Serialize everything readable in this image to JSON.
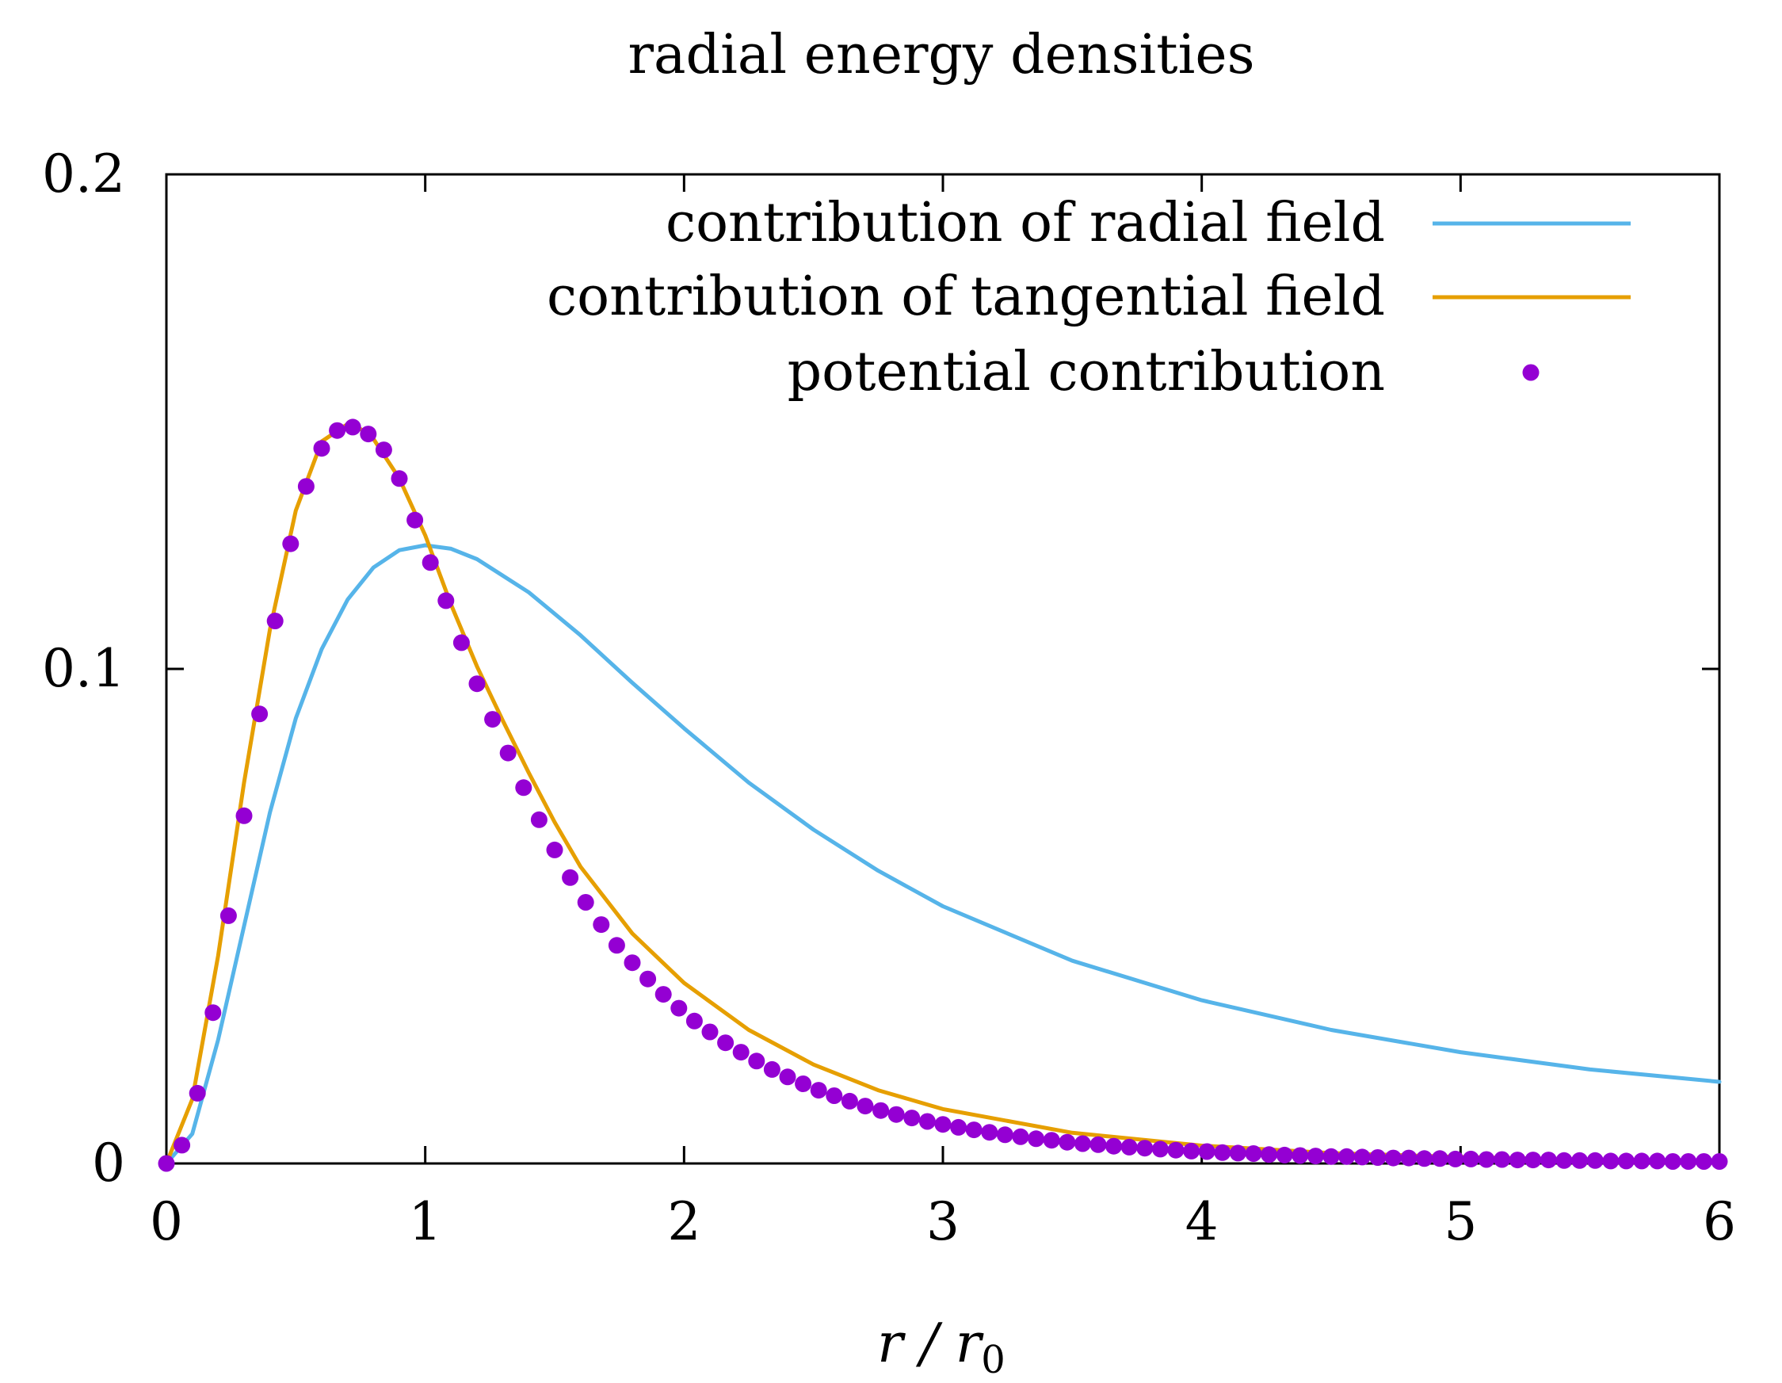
{
  "chart_data": {
    "type": "line",
    "title": "radial energy densities",
    "xlabel": {
      "main": "r / r",
      "subscript": "0"
    },
    "ylabel": "",
    "xlim": [
      0,
      6
    ],
    "ylim": [
      0,
      0.2
    ],
    "xticks": [
      0,
      1,
      2,
      3,
      4,
      5,
      6
    ],
    "yticks": [
      0,
      0.1,
      0.2
    ],
    "xtick_labels": [
      "0",
      "1",
      "2",
      "3",
      "4",
      "5",
      "6"
    ],
    "ytick_labels": [
      "0",
      "0.1",
      "0.2"
    ],
    "legend_position": "top-right",
    "series": [
      {
        "name": "contribution of radial field",
        "style": "line",
        "color": "#56b4e9",
        "x": [
          0,
          0.1,
          0.2,
          0.3,
          0.4,
          0.5,
          0.6,
          0.7,
          0.8,
          0.9,
          1.0,
          1.1,
          1.2,
          1.4,
          1.6,
          1.8,
          2.0,
          2.25,
          2.5,
          2.75,
          3.0,
          3.5,
          4.0,
          4.5,
          5.0,
          5.5,
          6.0
        ],
        "y": [
          0,
          0.006,
          0.025,
          0.048,
          0.071,
          0.09,
          0.104,
          0.114,
          0.1205,
          0.124,
          0.125,
          0.1243,
          0.1222,
          0.1155,
          0.1068,
          0.0972,
          0.088,
          0.077,
          0.0675,
          0.0592,
          0.052,
          0.041,
          0.033,
          0.027,
          0.0225,
          0.019,
          0.0165
        ]
      },
      {
        "name": "contribution of tangential field",
        "style": "line",
        "color": "#e69f00",
        "x": [
          0,
          0.1,
          0.2,
          0.3,
          0.4,
          0.5,
          0.6,
          0.7,
          0.75,
          0.8,
          0.9,
          1.0,
          1.1,
          1.2,
          1.3,
          1.4,
          1.5,
          1.6,
          1.8,
          2.0,
          2.25,
          2.5,
          2.75,
          3.0,
          3.5,
          4.0,
          4.5,
          5.0,
          5.5,
          6.0
        ],
        "y": [
          0,
          0.013,
          0.042,
          0.077,
          0.108,
          0.132,
          0.146,
          0.1495,
          0.1485,
          0.1465,
          0.1385,
          0.127,
          0.113,
          0.1005,
          0.0895,
          0.079,
          0.069,
          0.06,
          0.0465,
          0.0365,
          0.027,
          0.02,
          0.0148,
          0.011,
          0.0062,
          0.0036,
          0.0021,
          0.0013,
          0.0008,
          0.0005
        ]
      },
      {
        "name": "potential contribution",
        "style": "points",
        "color": "#9400d3",
        "x": [
          0,
          0.06,
          0.12,
          0.18,
          0.24,
          0.3,
          0.36,
          0.42,
          0.48,
          0.54,
          0.6,
          0.66,
          0.72,
          0.78,
          0.84,
          0.9,
          0.96,
          1.02,
          1.08,
          1.14,
          1.2,
          1.26,
          1.32,
          1.38,
          1.44,
          1.5,
          1.56,
          1.62,
          1.68,
          1.74,
          1.8,
          1.86,
          1.92,
          1.98,
          2.04,
          2.1,
          2.16,
          2.22,
          2.28,
          2.34,
          2.4,
          2.46,
          2.52,
          2.58,
          2.64,
          2.7,
          2.76,
          2.82,
          2.88,
          2.94,
          3.0,
          3.06,
          3.12,
          3.18,
          3.24,
          3.3,
          3.36,
          3.42,
          3.48,
          3.54,
          3.6,
          3.66,
          3.72,
          3.78,
          3.84,
          3.9,
          3.96,
          4.02,
          4.08,
          4.14,
          4.2,
          4.26,
          4.32,
          4.38,
          4.44,
          4.5,
          4.56,
          4.62,
          4.68,
          4.74,
          4.8,
          4.86,
          4.92,
          4.98,
          5.04,
          5.1,
          5.16,
          5.22,
          5.28,
          5.34,
          5.4,
          5.46,
          5.52,
          5.58,
          5.64,
          5.7,
          5.76,
          5.82,
          5.88,
          5.94,
          6.0
        ],
        "y": [
          0,
          0.0037,
          0.0142,
          0.0305,
          0.0501,
          0.0703,
          0.0909,
          0.1097,
          0.1253,
          0.1369,
          0.1446,
          0.1482,
          0.1489,
          0.1475,
          0.1443,
          0.1385,
          0.1301,
          0.1215,
          0.1138,
          0.1053,
          0.097,
          0.0898,
          0.083,
          0.076,
          0.0695,
          0.0634,
          0.0578,
          0.0528,
          0.0483,
          0.0441,
          0.0406,
          0.0373,
          0.0342,
          0.0314,
          0.0288,
          0.0266,
          0.0244,
          0.0225,
          0.0207,
          0.019,
          0.0175,
          0.0161,
          0.0148,
          0.0137,
          0.0126,
          0.0116,
          0.0107,
          0.0099,
          0.0092,
          0.0085,
          0.0079,
          0.0073,
          0.0068,
          0.0063,
          0.0058,
          0.0054,
          0.005,
          0.0047,
          0.0043,
          0.004,
          0.0038,
          0.0035,
          0.0033,
          0.0031,
          0.0029,
          0.0027,
          0.0025,
          0.0024,
          0.0022,
          0.0021,
          0.002,
          0.0018,
          0.0017,
          0.0016,
          0.0015,
          0.0014,
          0.0014,
          0.0013,
          0.0012,
          0.0011,
          0.0011,
          0.001,
          0.001,
          0.0009,
          0.0009,
          0.0008,
          0.0008,
          0.0007,
          0.0007,
          0.0007,
          0.0006,
          0.0006,
          0.0006,
          0.0005,
          0.0005,
          0.0005,
          0.0005,
          0.0004,
          0.0004,
          0.0004,
          0.0004
        ]
      }
    ]
  }
}
